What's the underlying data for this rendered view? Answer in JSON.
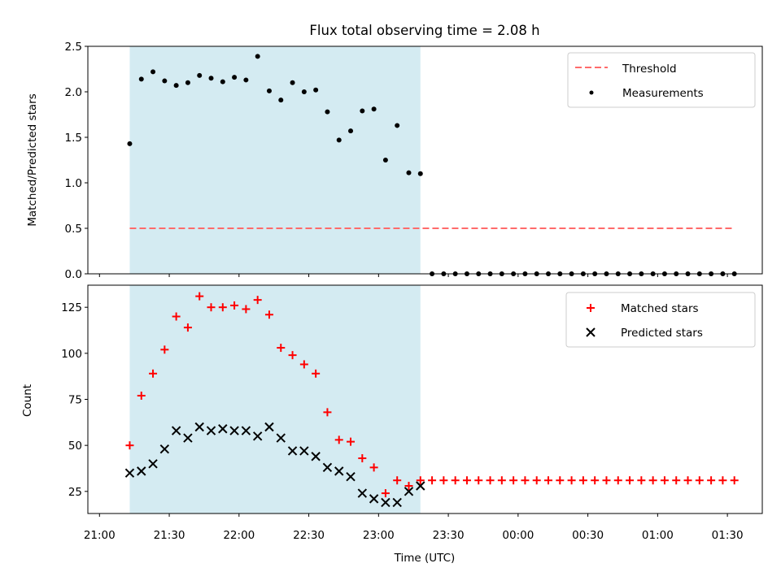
{
  "chart_data": [
    {
      "type": "scatter",
      "title": "Flux total observing time = 2.08 h",
      "xlabel": "",
      "ylabel": "Matched/Predicted stars",
      "ylim": [
        0,
        2.5
      ],
      "yticks": [
        "0.0",
        "0.5",
        "1.0",
        "1.5",
        "2.0",
        "2.5"
      ],
      "grid": false,
      "legend_position": "upper right",
      "shaded_region": {
        "x_start": "21:13",
        "x_end": "23:18",
        "color": "#add8e6"
      },
      "threshold": {
        "name": "Threshold",
        "value": 0.5,
        "x_start": "21:13",
        "x_end": "01:33",
        "color": "#ff6b6b"
      },
      "series": [
        {
          "name": "Measurements",
          "color": "#000000",
          "marker": "dot",
          "x": [
            "21:13",
            "21:18",
            "21:23",
            "21:28",
            "21:33",
            "21:38",
            "21:43",
            "21:48",
            "21:53",
            "21:58",
            "22:03",
            "22:08",
            "22:13",
            "22:18",
            "22:23",
            "22:28",
            "22:33",
            "22:38",
            "22:43",
            "22:48",
            "22:53",
            "22:58",
            "23:03",
            "23:08",
            "23:13",
            "23:18",
            "23:23",
            "23:28",
            "23:33",
            "23:38",
            "23:43",
            "23:48",
            "23:53",
            "23:58",
            "00:03",
            "00:08",
            "00:13",
            "00:18",
            "00:23",
            "00:28",
            "00:33",
            "00:38",
            "00:43",
            "00:48",
            "00:53",
            "00:58",
            "01:03",
            "01:08",
            "01:13",
            "01:18",
            "01:23",
            "01:28",
            "01:33"
          ],
          "values": [
            1.43,
            2.14,
            2.22,
            2.12,
            2.07,
            2.1,
            2.18,
            2.15,
            2.11,
            2.16,
            2.13,
            2.39,
            2.01,
            1.91,
            2.1,
            2.0,
            2.02,
            1.78,
            1.47,
            1.57,
            1.79,
            1.81,
            1.25,
            1.63,
            1.11,
            1.1,
            0,
            0,
            0,
            0,
            0,
            0,
            0,
            0,
            0,
            0,
            0,
            0,
            0,
            0,
            0,
            0,
            0,
            0,
            0,
            0,
            0,
            0,
            0,
            0,
            0,
            0,
            0
          ]
        }
      ]
    },
    {
      "type": "scatter",
      "title": "",
      "xlabel": "Time (UTC)",
      "ylabel": "Count",
      "ylim": [
        13,
        137
      ],
      "yticks": [
        "25",
        "50",
        "75",
        "100",
        "125"
      ],
      "xticks": [
        "21:00",
        "21:30",
        "22:00",
        "22:30",
        "23:00",
        "23:30",
        "00:00",
        "00:30",
        "01:00",
        "01:30"
      ],
      "grid": false,
      "legend_position": "upper right",
      "shaded_region": {
        "x_start": "21:13",
        "x_end": "23:18",
        "color": "#add8e6"
      },
      "series": [
        {
          "name": "Matched stars",
          "color": "#ff0000",
          "marker": "plus",
          "x": [
            "21:13",
            "21:18",
            "21:23",
            "21:28",
            "21:33",
            "21:38",
            "21:43",
            "21:48",
            "21:53",
            "21:58",
            "22:03",
            "22:08",
            "22:13",
            "22:18",
            "22:23",
            "22:28",
            "22:33",
            "22:38",
            "22:43",
            "22:48",
            "22:53",
            "22:58",
            "23:03",
            "23:08",
            "23:13",
            "23:18",
            "23:23",
            "23:28",
            "23:33",
            "23:38",
            "23:43",
            "23:48",
            "23:53",
            "23:58",
            "00:03",
            "00:08",
            "00:13",
            "00:18",
            "00:23",
            "00:28",
            "00:33",
            "00:38",
            "00:43",
            "00:48",
            "00:53",
            "00:58",
            "01:03",
            "01:08",
            "01:13",
            "01:18",
            "01:23",
            "01:28",
            "01:33"
          ],
          "values": [
            50,
            77,
            89,
            102,
            120,
            114,
            131,
            125,
            125,
            126,
            124,
            129,
            121,
            103,
            99,
            94,
            89,
            68,
            53,
            52,
            43,
            38,
            24,
            31,
            28,
            31,
            31,
            31,
            31,
            31,
            31,
            31,
            31,
            31,
            31,
            31,
            31,
            31,
            31,
            31,
            31,
            31,
            31,
            31,
            31,
            31,
            31,
            31,
            31,
            31,
            31,
            31,
            31
          ]
        },
        {
          "name": "Predicted stars",
          "color": "#000000",
          "marker": "x",
          "x": [
            "21:13",
            "21:18",
            "21:23",
            "21:28",
            "21:33",
            "21:38",
            "21:43",
            "21:48",
            "21:53",
            "21:58",
            "22:03",
            "22:08",
            "22:13",
            "22:18",
            "22:23",
            "22:28",
            "22:33",
            "22:38",
            "22:43",
            "22:48",
            "22:53",
            "22:58",
            "23:03",
            "23:08",
            "23:13",
            "23:18"
          ],
          "values": [
            35,
            36,
            40,
            48,
            58,
            54,
            60,
            58,
            59,
            58,
            58,
            55,
            60,
            54,
            47,
            47,
            44,
            38,
            36,
            33,
            24,
            21,
            19,
            19,
            25,
            28
          ]
        }
      ]
    }
  ]
}
